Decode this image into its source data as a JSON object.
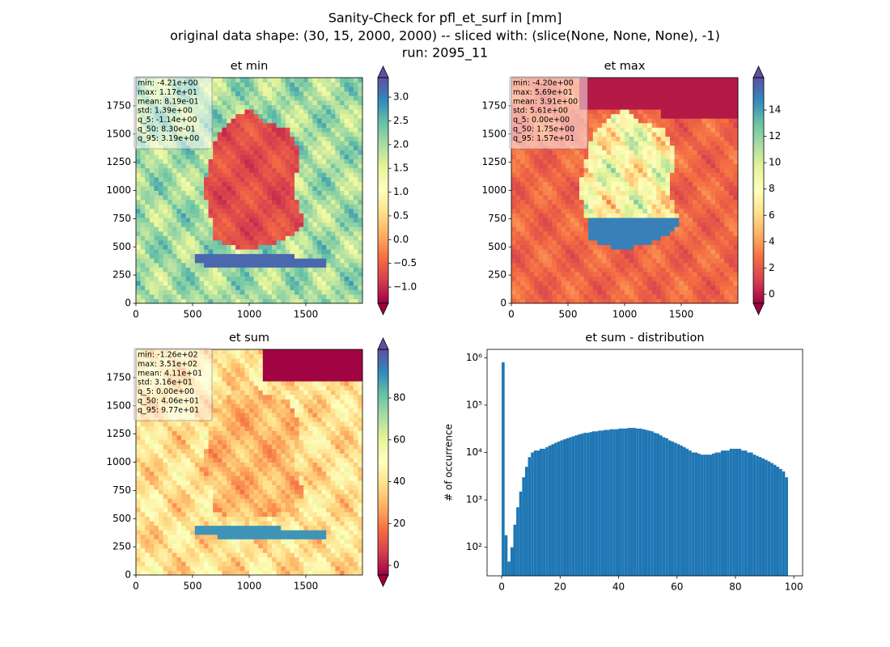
{
  "figure_title": [
    "Sanity-Check for pfl_et_surf in [mm]",
    "original data shape: (30, 15, 2000, 2000) -- sliced with: (slice(None, None, None), -1)",
    "run: 2095_11"
  ],
  "chart_data": [
    {
      "type": "heatmap",
      "title": "et min",
      "cmap": "Spectral",
      "xlim": [
        0,
        2000
      ],
      "xticks": [
        0,
        500,
        1000,
        1500
      ],
      "ylim": [
        0,
        2000
      ],
      "yticks": [
        0,
        250,
        500,
        750,
        1000,
        1250,
        1500,
        1750
      ],
      "clim": [
        -1.34,
        3.41
      ],
      "cticks": [
        {
          "value": -1.0,
          "label": "−1.0"
        },
        {
          "value": -0.5,
          "label": "−0.5"
        },
        {
          "value": 0.0,
          "label": "0.0"
        },
        {
          "value": 0.5,
          "label": "0.5"
        },
        {
          "value": 1.0,
          "label": "1.0"
        },
        {
          "value": 1.5,
          "label": "1.5"
        },
        {
          "value": 2.0,
          "label": "2.0"
        },
        {
          "value": 2.5,
          "label": "2.5"
        },
        {
          "value": 3.0,
          "label": "3.0"
        }
      ],
      "stats": [
        "min: -4.21e+00",
        "max: 1.17e+01",
        "mean: 8.19e-01",
        "std: 1.39e+00",
        "q_5: -1.14e+00",
        "q_50: 8.30e-01",
        "q_95: 3.19e+00"
      ]
    },
    {
      "type": "heatmap",
      "title": "et max",
      "cmap": "Spectral",
      "xlim": [
        0,
        2000
      ],
      "xticks": [
        0,
        500,
        1000,
        1500
      ],
      "ylim": [
        0,
        2000
      ],
      "yticks": [
        0,
        250,
        500,
        750,
        1000,
        1250,
        1500,
        1750
      ],
      "clim": [
        -0.68,
        16.46
      ],
      "cticks": [
        0,
        2,
        4,
        6,
        8,
        10,
        12,
        14
      ],
      "stats": [
        "min: -4.20e+00",
        "max: 5.69e+01",
        "mean: 3.91e+00",
        "std: 5.61e+00",
        "q_5: 0.00e+00",
        "q_50: 1.75e+00",
        "q_95: 1.57e+01"
      ]
    },
    {
      "type": "heatmap",
      "title": "et sum",
      "cmap": "Spectral",
      "xlim": [
        0,
        2000
      ],
      "xticks": [
        0,
        500,
        1000,
        1500
      ],
      "ylim": [
        0,
        2000
      ],
      "yticks": [
        0,
        250,
        500,
        750,
        1000,
        1250,
        1500,
        1750
      ],
      "clim": [
        -4.6,
        103.2
      ],
      "cticks": [
        0,
        20,
        40,
        60,
        80
      ],
      "stats": [
        "min: -1.26e+02",
        "max: 3.51e+02",
        "mean: 4.11e+01",
        "std: 3.16e+01",
        "q_5: 0.00e+00",
        "q_50: 4.06e+01",
        "q_95: 9.77e+01"
      ]
    },
    {
      "type": "histogram",
      "title": "et sum - distribution",
      "ylabel": "# of occurrence",
      "color": "#1f77b4",
      "log_y": true,
      "xlim": [
        -5,
        103
      ],
      "xticks": [
        0,
        20,
        40,
        60,
        80,
        100
      ],
      "ylim": [
        25,
        1500000
      ],
      "yticks": [
        {
          "value": 100,
          "label": "10²"
        },
        {
          "value": 1000,
          "label": "10³"
        },
        {
          "value": 10000,
          "label": "10⁴"
        },
        {
          "value": 100000,
          "label": "10⁵"
        },
        {
          "value": 1000000,
          "label": "10⁶"
        }
      ],
      "bins": [
        0,
        1,
        2,
        3,
        4,
        5,
        6,
        7,
        8,
        9,
        10,
        11,
        12,
        13,
        14,
        15,
        16,
        17,
        18,
        19,
        20,
        21,
        22,
        23,
        24,
        25,
        26,
        27,
        28,
        29,
        30,
        31,
        32,
        33,
        34,
        35,
        36,
        37,
        38,
        39,
        40,
        41,
        42,
        43,
        44,
        45,
        46,
        47,
        48,
        49,
        50,
        51,
        52,
        53,
        54,
        55,
        56,
        57,
        58,
        59,
        60,
        61,
        62,
        63,
        64,
        65,
        66,
        67,
        68,
        69,
        70,
        71,
        72,
        73,
        74,
        75,
        76,
        77,
        78,
        79,
        80,
        81,
        82,
        83,
        84,
        85,
        86,
        87,
        88,
        89,
        90,
        91,
        92,
        93,
        94,
        95,
        96,
        97,
        98
      ],
      "counts": [
        800000,
        180,
        50,
        100,
        300,
        700,
        1500,
        3000,
        5000,
        8000,
        10000,
        11000,
        11000,
        12000,
        12000,
        13000,
        14000,
        15000,
        16000,
        17000,
        18000,
        19000,
        20000,
        21000,
        22000,
        23000,
        24000,
        25000,
        26000,
        26000,
        27000,
        28000,
        28000,
        29000,
        29000,
        30000,
        30000,
        31000,
        31000,
        31000,
        32000,
        32000,
        32000,
        33000,
        33000,
        33000,
        32000,
        32000,
        31000,
        30000,
        29000,
        28000,
        26000,
        25000,
        23000,
        21000,
        20000,
        18000,
        17000,
        16000,
        15000,
        14000,
        13000,
        12000,
        11000,
        10000,
        10000,
        9500,
        9000,
        9000,
        9000,
        9000,
        9500,
        10000,
        10000,
        11000,
        11000,
        11000,
        12000,
        12000,
        12000,
        12000,
        11000,
        11000,
        10000,
        10000,
        9000,
        8500,
        8000,
        7500,
        7000,
        6500,
        6000,
        5500,
        5000,
        4500,
        4000,
        3000
      ]
    }
  ]
}
